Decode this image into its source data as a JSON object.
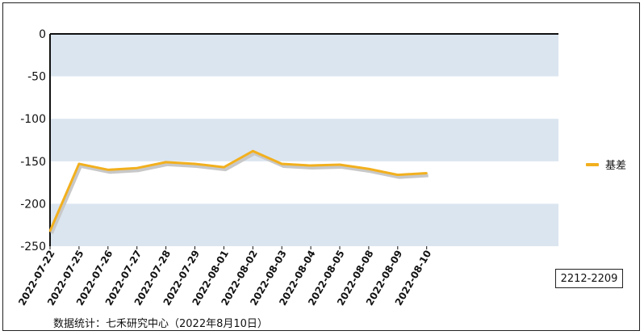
{
  "chart_data": {
    "type": "line",
    "x": [
      "2022-07-22",
      "2022-07-25",
      "2022-07-26",
      "2022-07-27",
      "2022-07-28",
      "2022-07-29",
      "2022-08-01",
      "2022-08-02",
      "2022-08-03",
      "2022-08-04",
      "2022-08-05",
      "2022-08-08",
      "2022-08-09",
      "2022-08-10"
    ],
    "series": [
      {
        "name": "基差",
        "values": [
          -232,
          -153,
          -160,
          -158,
          -151,
          -153,
          -157,
          -138,
          -153,
          -155,
          -154,
          -159,
          -166,
          -164
        ]
      }
    ],
    "ylim": [
      -250,
      0
    ],
    "yticks": [
      0,
      -50,
      -100,
      -150,
      -200,
      -250
    ],
    "ytick_labels": [
      "0",
      "-50",
      "-100",
      "-150",
      "-200",
      "-250"
    ],
    "grid": "alternating horizontal bands",
    "legend_position": "right"
  },
  "colors": {
    "line": "#f2b01e",
    "shadow": "#c8c8c8",
    "band": "#dae5f0"
  },
  "badge": "2212-2209",
  "source": "数据统计：七禾研究中心（2022年8月10日）"
}
